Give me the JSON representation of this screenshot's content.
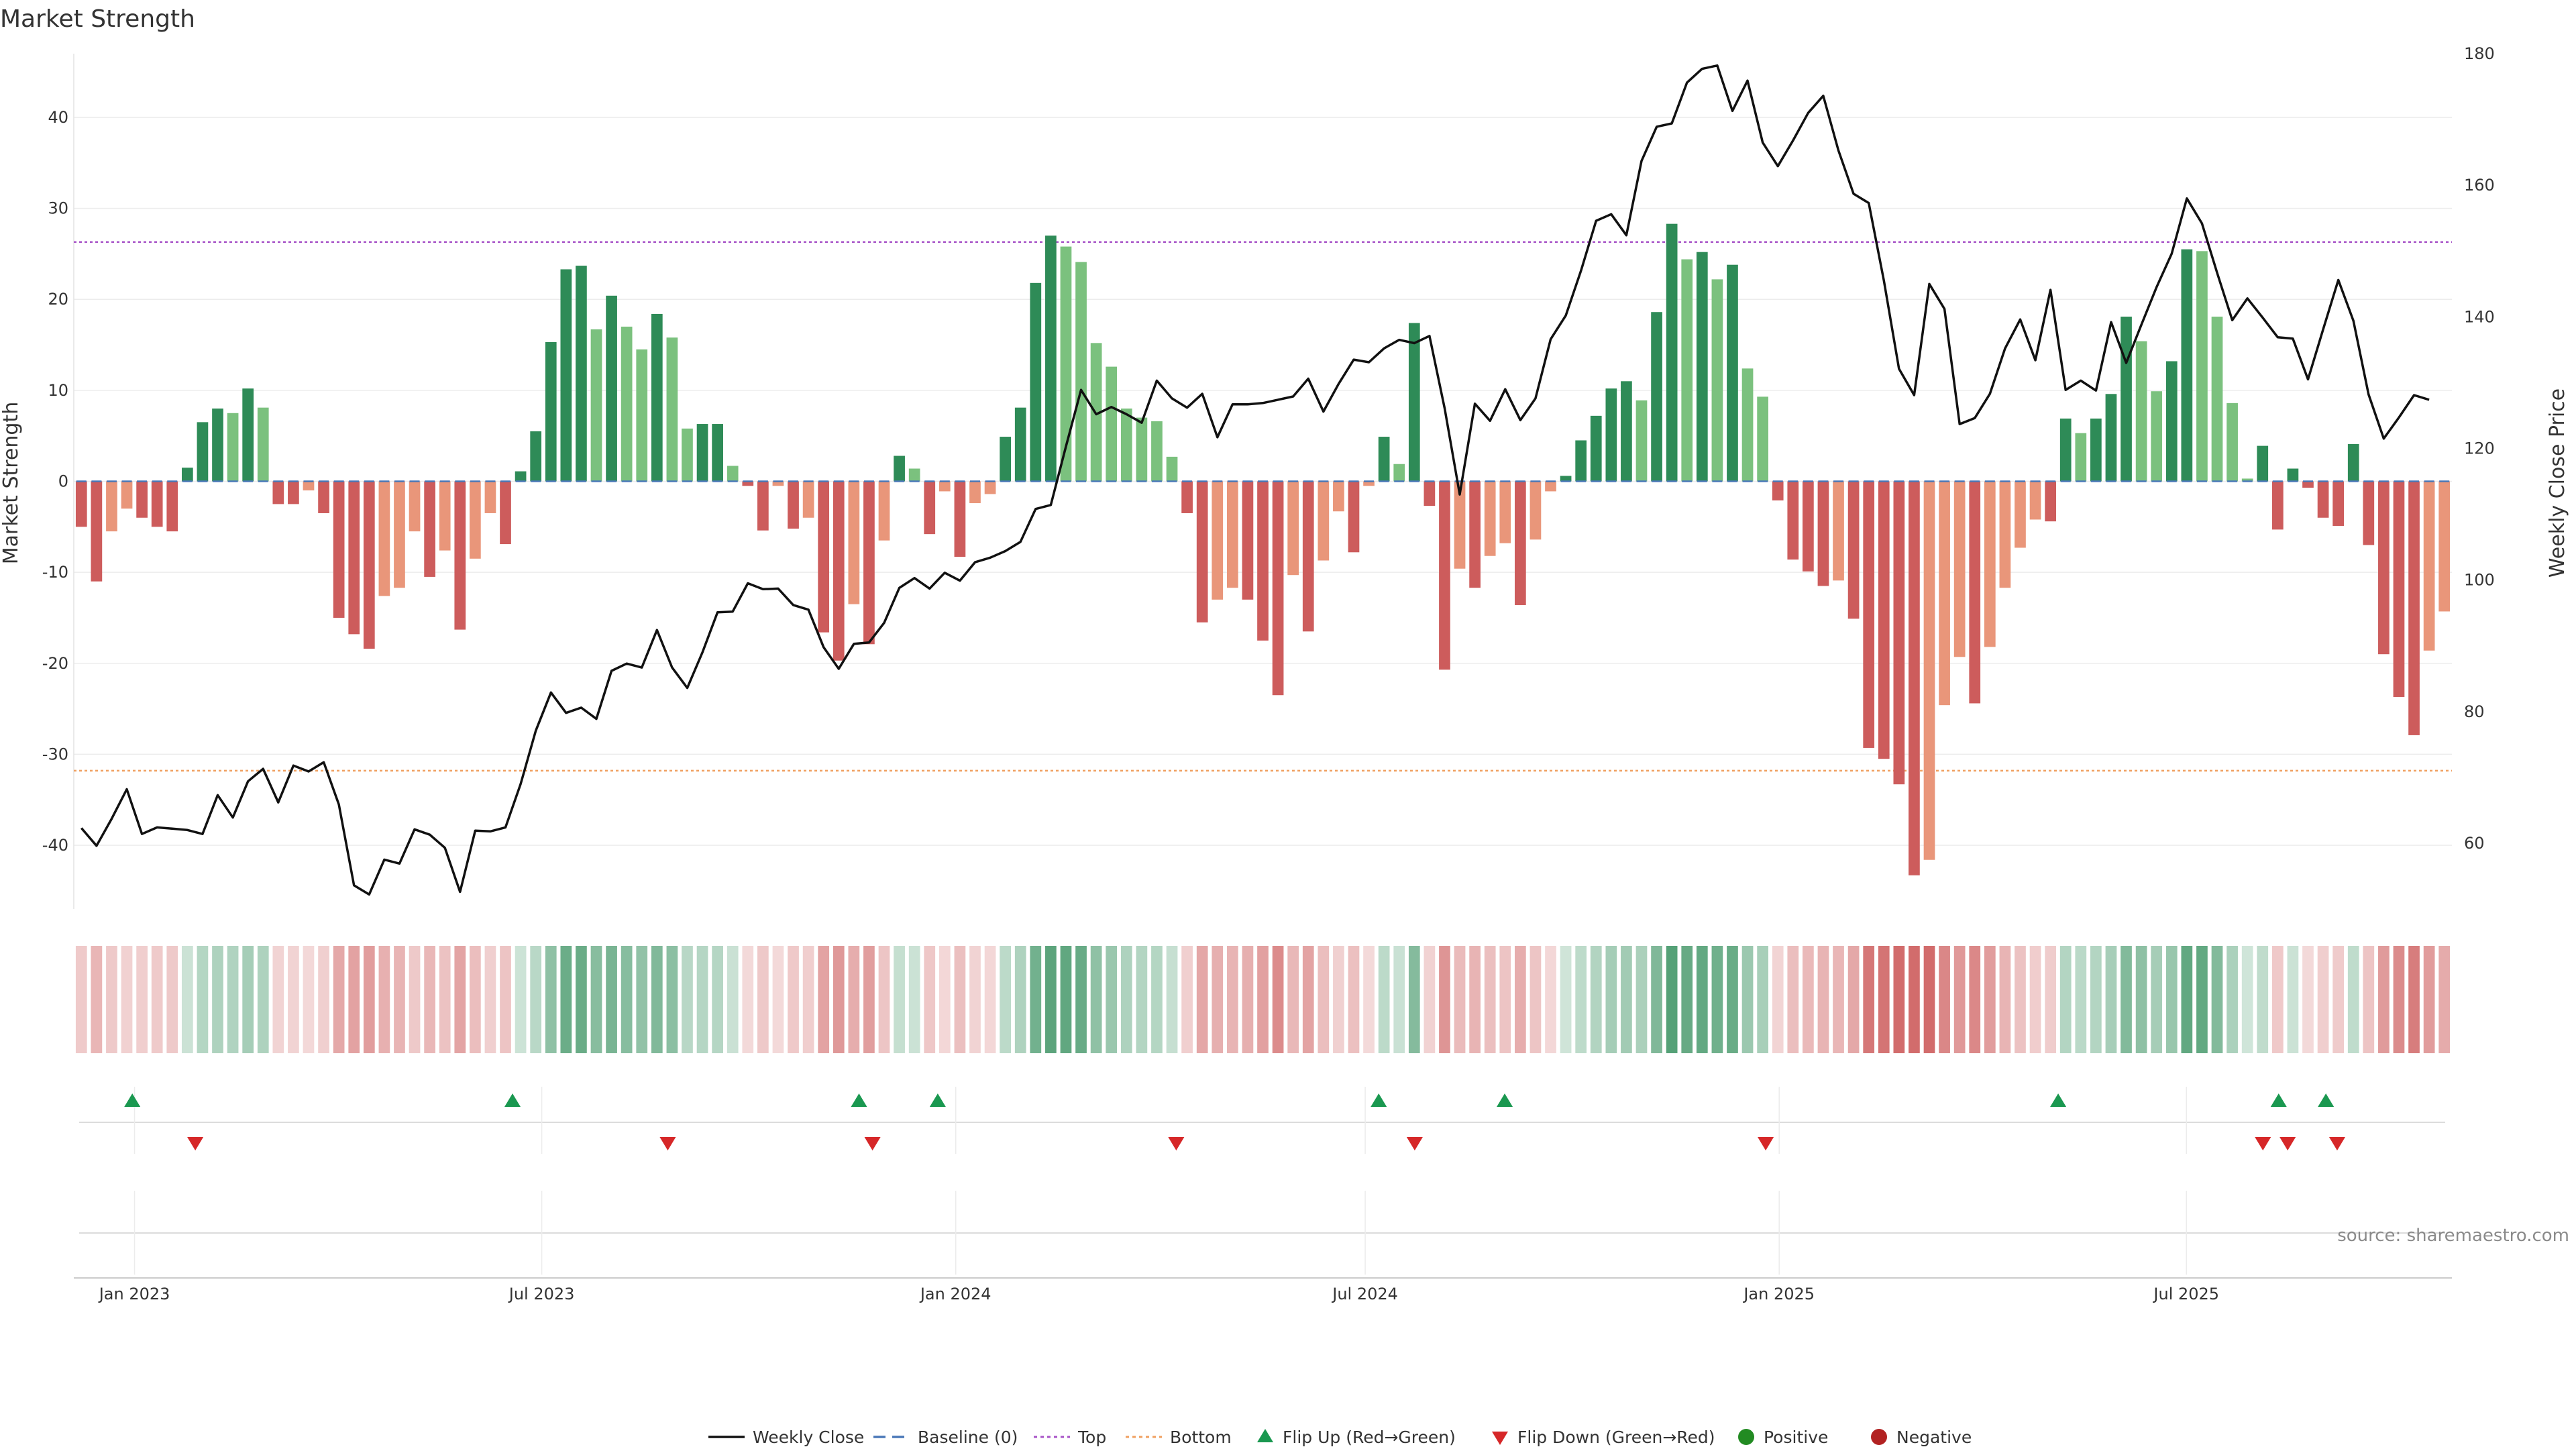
{
  "chart_data": {
    "type": "bar",
    "title": "Market Strength",
    "ylabel": "Market Strength",
    "ylabel_right": "Weekly Close Price",
    "ylim": [
      -47,
      47
    ],
    "ylim_right": [
      50,
      180
    ],
    "yticks": [
      -40,
      -30,
      -20,
      -10,
      0,
      10,
      20,
      30,
      40
    ],
    "yticks_right": [
      60,
      80,
      100,
      120,
      140,
      160,
      180
    ],
    "x_start": "2022-12-05",
    "x_end": "2025-10-27",
    "x_ticks": [
      {
        "date": "2023-01-01",
        "label": "Jan 2023"
      },
      {
        "date": "2023-07-01",
        "label": "Jul 2023"
      },
      {
        "date": "2024-01-01",
        "label": "Jan 2024"
      },
      {
        "date": "2024-07-01",
        "label": "Jul 2024"
      },
      {
        "date": "2025-01-01",
        "label": "Jan 2025"
      },
      {
        "date": "2025-07-01",
        "label": "Jul 2025"
      }
    ],
    "top_line": 26.3,
    "bottom_line": -31.8,
    "grid": true,
    "legend_position": "bottom",
    "source": "source: sharemaestro.com",
    "strength": [
      -5,
      -11,
      -5.5,
      -3,
      -4,
      -5,
      -5.5,
      1.5,
      6.5,
      8,
      7.5,
      10.2,
      8.1,
      -2.5,
      -2.5,
      -1,
      -3.5,
      -15,
      -16.8,
      -18.4,
      -12.6,
      -11.7,
      -5.5,
      -10.5,
      -7.6,
      -16.3,
      -8.5,
      -3.5,
      -6.9,
      1.1,
      5.5,
      15.3,
      23.3,
      23.7,
      16.7,
      20.4,
      17,
      14.5,
      18.4,
      15.8,
      5.8,
      6.3,
      6.3,
      1.7,
      -0.5,
      -5.4,
      -0.5,
      -5.2,
      -4,
      -16.6,
      -19.7,
      -13.5,
      -17.9,
      -6.5,
      2.8,
      1.4,
      -5.8,
      -1.1,
      -8.3,
      -2.4,
      -1.4,
      4.9,
      8.1,
      21.8,
      27,
      25.8,
      24.1,
      15.2,
      12.6,
      8,
      7,
      6.6,
      2.7,
      -3.5,
      -15.5,
      -13,
      -11.7,
      -13,
      -17.5,
      -23.5,
      -10.3,
      -16.5,
      -8.7,
      -3.3,
      -7.8,
      -0.5,
      4.9,
      1.9,
      17.4,
      -2.7,
      -20.7,
      -9.6,
      -11.7,
      -8.2,
      -6.8,
      -13.6,
      -6.4,
      -1.1,
      0.6,
      4.5,
      7.2,
      10.2,
      11,
      8.9,
      18.6,
      28.3,
      24.4,
      25.2,
      22.2,
      23.8,
      12.4,
      9.3,
      -2.1,
      -8.6,
      -9.9,
      -11.5,
      -10.9,
      -15.1,
      -29.3,
      -30.5,
      -33.3,
      -43.3,
      -41.6,
      -24.6,
      -19.3,
      -24.4,
      -18.2,
      -11.7,
      -7.3,
      -4.2,
      -4.4,
      6.9,
      5.3,
      6.9,
      9.6,
      18.1,
      15.4,
      9.9,
      13.2,
      25.5,
      25.3,
      18.1,
      8.6,
      0.3,
      3.9,
      -5.3,
      1.4,
      -0.7,
      -4,
      -4.9,
      4.1,
      -7,
      -19,
      -23.7,
      -27.9,
      -18.6,
      -14.3
    ],
    "weekly_close": [
      62.3,
      59.6,
      63.7,
      68.2,
      61.4,
      62.4,
      62.2,
      62,
      61.4,
      67.3,
      63.9,
      69.4,
      71.3,
      66.2,
      71.8,
      70.9,
      72.3,
      65.9,
      53.6,
      52.2,
      57.5,
      56.9,
      62.1,
      61.3,
      59.3,
      52.6,
      61.9,
      61.8,
      62.4,
      69,
      77.1,
      82.9,
      79.8,
      80.6,
      78.9,
      86.2,
      87.3,
      86.7,
      92.4,
      86.7,
      83.6,
      89,
      95.1,
      95.2,
      99.5,
      98.6,
      98.7,
      96.2,
      95.5,
      89.8,
      86.5,
      90.3,
      90.5,
      93.5,
      98.8,
      100.3,
      98.7,
      101.1,
      99.9,
      102.7,
      103.4,
      104.4,
      105.8,
      110.8,
      111.4,
      120.3,
      128.9,
      125.2,
      126.3,
      125.2,
      123.9,
      130.3,
      127.6,
      126.2,
      128.3,
      121.7,
      126.7,
      126.7,
      126.9,
      127.4,
      127.9,
      130.6,
      125.6,
      129.8,
      133.5,
      133.1,
      135.2,
      136.5,
      136,
      137.1,
      126.1,
      113,
      126.8,
      124.2,
      129,
      124.3,
      127.6,
      136.6,
      140.2,
      147,
      154.6,
      155.6,
      152.4,
      163.7,
      168.9,
      169.4,
      175.6,
      177.7,
      178.2,
      171.3,
      175.9,
      166.5,
      162.9,
      166.8,
      171,
      173.6,
      165.3,
      158.7,
      157.3,
      145.5,
      132.1,
      128.1,
      145,
      141.2,
      123.7,
      124.6,
      128.3,
      135.2,
      139.6,
      133.4,
      144.1,
      128.9,
      130.3,
      128.8,
      139.2,
      133,
      138.8,
      144.5,
      149.6,
      158,
      154.2,
      146.7,
      139.5,
      142.8,
      139.9,
      136.9,
      136.7,
      130.5,
      138.1,
      145.6,
      139.4,
      128.2,
      121.5,
      124.7,
      128.1,
      127.4
    ],
    "flip_up": [
      "2022-12-31",
      "2023-06-18",
      "2023-11-19",
      "2023-12-24",
      "2024-07-07",
      "2024-09-01",
      "2025-05-05",
      "2025-08-11",
      "2025-09-01"
    ],
    "flip_down": [
      "2023-01-28",
      "2023-08-26",
      "2023-11-25",
      "2024-04-08",
      "2024-07-23",
      "2024-12-26",
      "2025-08-04",
      "2025-08-15",
      "2025-09-06"
    ],
    "legend": [
      "Weekly Close",
      "Baseline (0)",
      "Top",
      "Bottom",
      "Flip Up (Red→Green)",
      "Flip Down (Green→Red)",
      "Positive",
      "Negative"
    ],
    "colors": {
      "pos_strong": "#2e8b57",
      "pos_weak": "#7bc17e",
      "neg_strong": "#cd5c5c",
      "neg_weak": "#e9967a",
      "price": "#111111",
      "baseline": "#4a78b8",
      "top": "#a855c8",
      "bottom": "#f0a060",
      "flip_up": "#1a9850",
      "flip_down": "#d62728",
      "dot_pos": "#228b22",
      "dot_neg": "#b22222"
    }
  }
}
